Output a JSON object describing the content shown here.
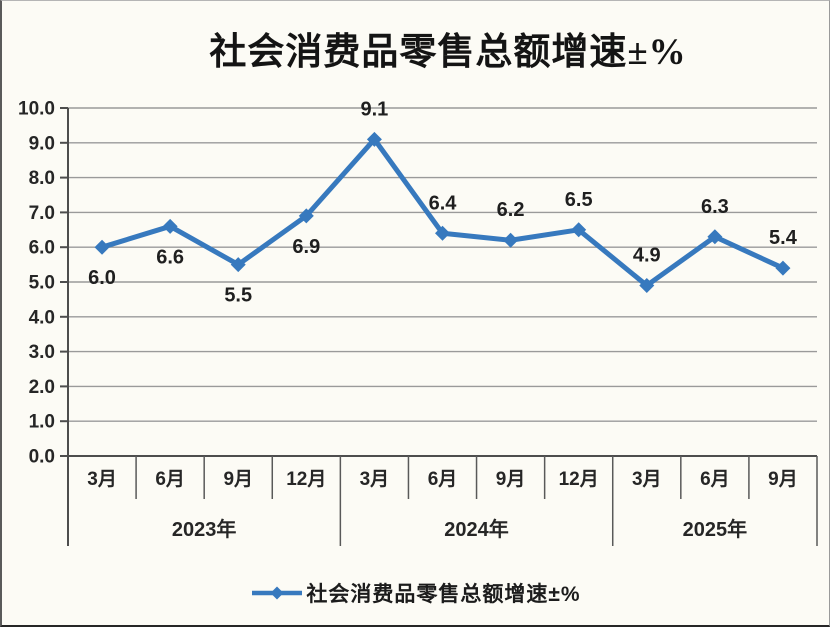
{
  "title": "社会消费品零售总额增速±%",
  "legend": {
    "label": "社会消费品零售总额增速±%"
  },
  "colors": {
    "line": "#3779BE",
    "marker": "#3779BE",
    "grid": "#9a9a9a",
    "axis": "#4d4d4d",
    "separator": "#595959",
    "label_text": "#1f1f1f",
    "background": "#FCFBF5"
  },
  "chart_data": {
    "type": "line",
    "title": "社会消费品零售总额增速±%",
    "categories": [
      "3月",
      "6月",
      "9月",
      "12月",
      "3月",
      "6月",
      "9月",
      "12月",
      "3月",
      "6月",
      "9月"
    ],
    "year_groups": [
      {
        "label": "2023年",
        "span": 4
      },
      {
        "label": "2024年",
        "span": 4
      },
      {
        "label": "2025年",
        "span": 3
      }
    ],
    "series": [
      {
        "name": "社会消费品零售总额增速±%",
        "values": [
          6.0,
          6.6,
          5.5,
          6.9,
          9.1,
          6.4,
          6.2,
          6.5,
          4.9,
          6.3,
          5.4
        ]
      }
    ],
    "data_label_positions": [
      "below",
      "below",
      "below",
      "below",
      "above",
      "above",
      "above",
      "above",
      "above",
      "above",
      "above"
    ],
    "ylim": [
      0,
      10
    ],
    "yticks": [
      0.0,
      1.0,
      2.0,
      3.0,
      4.0,
      5.0,
      6.0,
      7.0,
      8.0,
      9.0,
      10.0
    ],
    "ytick_label_format": "one_decimal",
    "grid": true,
    "legend_position": "bottom",
    "marker": "diamond"
  }
}
